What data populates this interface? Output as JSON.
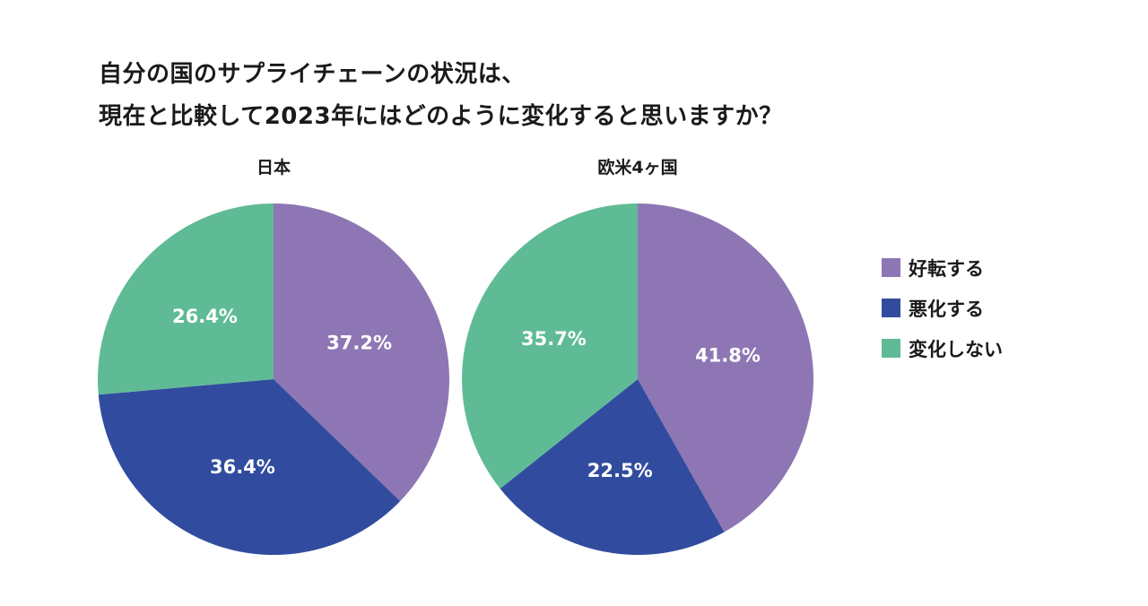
{
  "title": {
    "line1": "自分の国のサプライチェーンの状況は、",
    "line2": "現在と比較して2023年にはどのように変化すると思いますか？"
  },
  "legend": [
    {
      "label": "好転する",
      "color": "#8e76b4"
    },
    {
      "label": "悪化する",
      "color": "#314c9e"
    },
    {
      "label": "変化しない",
      "color": "#5fbb96"
    }
  ],
  "chart_data": [
    {
      "type": "pie",
      "title": "日本",
      "slices": [
        {
          "category": "好転する",
          "value": 37.2,
          "label": "37.2%"
        },
        {
          "category": "悪化する",
          "value": 36.4,
          "label": "36.4%"
        },
        {
          "category": "変化しない",
          "value": 26.4,
          "label": "26.4%"
        }
      ]
    },
    {
      "type": "pie",
      "title": "欧米4ヶ国",
      "slices": [
        {
          "category": "好転する",
          "value": 41.8,
          "label": "41.8%"
        },
        {
          "category": "悪化する",
          "value": 22.5,
          "label": "22.5%"
        },
        {
          "category": "変化しない",
          "value": 35.7,
          "label": "35.7%"
        }
      ]
    }
  ]
}
